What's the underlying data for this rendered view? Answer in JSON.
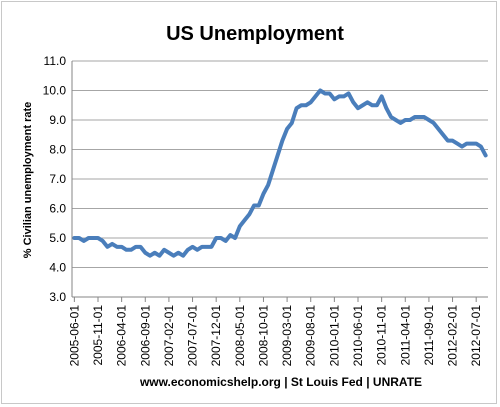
{
  "chart_data": {
    "type": "line",
    "title": "US Unemployment",
    "ylabel": "% Civilian unemployment rate",
    "xlabel": "www.economicshelp.org | St Louis Fed | UNRATE",
    "ylim": [
      3.0,
      11.0
    ],
    "yticks": [
      "3.0",
      "4.0",
      "5.0",
      "6.0",
      "7.0",
      "8.0",
      "9.0",
      "10.0",
      "11.0"
    ],
    "xticks": [
      "2005-06-01",
      "2005-11-01",
      "2006-04-01",
      "2006-09-01",
      "2007-02-01",
      "2007-07-01",
      "2007-12-01",
      "2008-05-01",
      "2008-10-01",
      "2009-03-01",
      "2009-08-01",
      "2010-01-01",
      "2010-06-01",
      "2010-11-01",
      "2011-04-01",
      "2011-09-01",
      "2012-02-01",
      "2012-07-01"
    ],
    "grid": true,
    "line_color": "#4a7ebb",
    "series": [
      {
        "x": [
          "2005-06-01",
          "2005-07-01",
          "2005-08-01",
          "2005-09-01",
          "2005-10-01",
          "2005-11-01",
          "2005-12-01",
          "2006-01-01",
          "2006-02-01",
          "2006-03-01",
          "2006-04-01",
          "2006-05-01",
          "2006-06-01",
          "2006-07-01",
          "2006-08-01",
          "2006-09-01",
          "2006-10-01",
          "2006-11-01",
          "2006-12-01",
          "2007-01-01",
          "2007-02-01",
          "2007-03-01",
          "2007-04-01",
          "2007-05-01",
          "2007-06-01",
          "2007-07-01",
          "2007-08-01",
          "2007-09-01",
          "2007-10-01",
          "2007-11-01",
          "2007-12-01",
          "2008-01-01",
          "2008-02-01",
          "2008-03-01",
          "2008-04-01",
          "2008-05-01",
          "2008-06-01",
          "2008-07-01",
          "2008-08-01",
          "2008-09-01",
          "2008-10-01",
          "2008-11-01",
          "2008-12-01",
          "2009-01-01",
          "2009-02-01",
          "2009-03-01",
          "2009-04-01",
          "2009-05-01",
          "2009-06-01",
          "2009-07-01",
          "2009-08-01",
          "2009-09-01",
          "2009-10-01",
          "2009-11-01",
          "2009-12-01",
          "2010-01-01",
          "2010-02-01",
          "2010-03-01",
          "2010-04-01",
          "2010-05-01",
          "2010-06-01",
          "2010-07-01",
          "2010-08-01",
          "2010-09-01",
          "2010-10-01",
          "2010-11-01",
          "2010-12-01",
          "2011-01-01",
          "2011-02-01",
          "2011-03-01",
          "2011-04-01",
          "2011-05-01",
          "2011-06-01",
          "2011-07-01",
          "2011-08-01",
          "2011-09-01",
          "2011-10-01",
          "2011-11-01",
          "2011-12-01",
          "2012-01-01",
          "2012-02-01",
          "2012-03-01",
          "2012-04-01",
          "2012-05-01",
          "2012-06-01",
          "2012-07-01",
          "2012-08-01",
          "2012-09-01"
        ],
        "values": [
          5.0,
          5.0,
          4.9,
          5.0,
          5.0,
          5.0,
          4.9,
          4.7,
          4.8,
          4.7,
          4.7,
          4.6,
          4.6,
          4.7,
          4.7,
          4.5,
          4.4,
          4.5,
          4.4,
          4.6,
          4.5,
          4.4,
          4.5,
          4.4,
          4.6,
          4.7,
          4.6,
          4.7,
          4.7,
          4.7,
          5.0,
          5.0,
          4.9,
          5.1,
          5.0,
          5.4,
          5.6,
          5.8,
          6.1,
          6.1,
          6.5,
          6.8,
          7.3,
          7.8,
          8.3,
          8.7,
          8.9,
          9.4,
          9.5,
          9.5,
          9.6,
          9.8,
          10.0,
          9.9,
          9.9,
          9.7,
          9.8,
          9.8,
          9.9,
          9.6,
          9.4,
          9.5,
          9.6,
          9.5,
          9.5,
          9.8,
          9.4,
          9.1,
          9.0,
          8.9,
          9.0,
          9.0,
          9.1,
          9.1,
          9.1,
          9.0,
          8.9,
          8.7,
          8.5,
          8.3,
          8.3,
          8.2,
          8.1,
          8.2,
          8.2,
          8.2,
          8.1,
          7.8
        ]
      }
    ]
  }
}
